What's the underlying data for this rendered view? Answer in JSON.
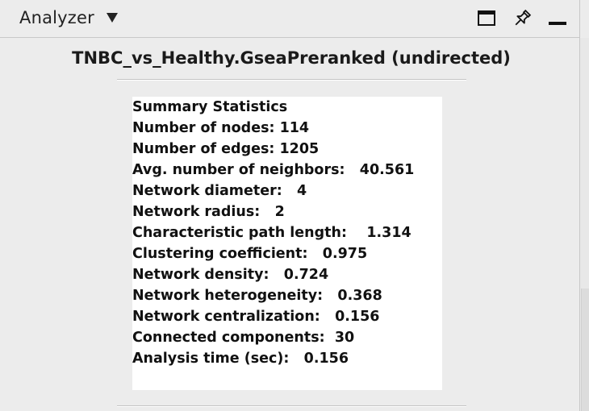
{
  "panel": {
    "title": "Analyzer",
    "icons": {
      "dropdown": "chevron-down-icon",
      "window": "window-icon",
      "pin": "pin-icon",
      "minimize": "minimize-icon"
    }
  },
  "network": {
    "title": "TNBC_vs_Healthy.GseaPreranked (undirected)"
  },
  "summary": {
    "heading": "Summary Statistics",
    "stats": [
      {
        "label": "Number of nodes:",
        "value": "114"
      },
      {
        "label": "Number of edges:",
        "value": "1205"
      },
      {
        "label": "Avg. number of neighbors:",
        "value": "40.561"
      },
      {
        "label": "Network diameter:",
        "value": "4"
      },
      {
        "label": "Network radius:",
        "value": "2"
      },
      {
        "label": "Characteristic path length:",
        "value": "1.314"
      },
      {
        "label": "Clustering coefficient:",
        "value": "0.975"
      },
      {
        "label": "Network density:",
        "value": "0.724"
      },
      {
        "label": "Network heterogeneity:",
        "value": "0.368"
      },
      {
        "label": "Network centralization:",
        "value": "0.156"
      },
      {
        "label": "Connected components:",
        "value": "30"
      },
      {
        "label": "Analysis time (sec):",
        "value": "0.156"
      }
    ]
  }
}
